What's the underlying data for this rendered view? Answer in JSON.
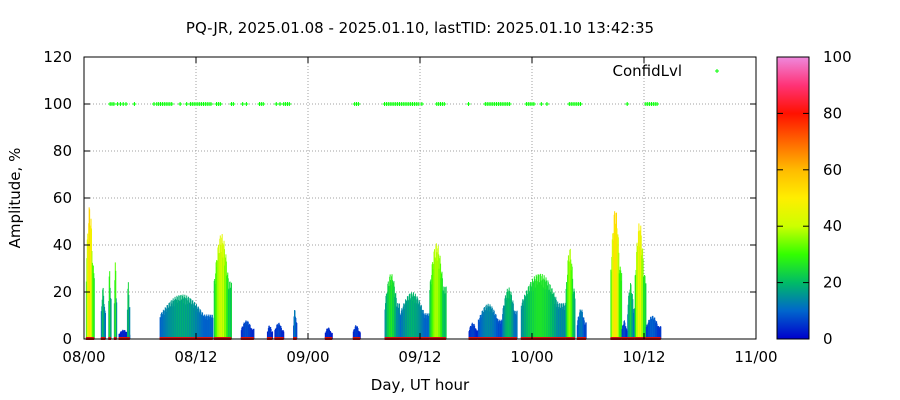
{
  "chart_data": {
    "type": "bar",
    "title": "PQ-JR, 2025.01.08 - 2025.01.10, lastTID: 2025.01.10 13:42:35",
    "xlabel": "Day, UT hour",
    "ylabel": "Amplitude, %",
    "xlim": [
      0,
      72
    ],
    "ylim": [
      0,
      120
    ],
    "x_ticks": [
      {
        "value": 0,
        "label": "08/00"
      },
      {
        "value": 12,
        "label": "08/12"
      },
      {
        "value": 24,
        "label": "09/00"
      },
      {
        "value": 36,
        "label": "09/12"
      },
      {
        "value": 48,
        "label": "10/00"
      },
      {
        "value": 60,
        "label": "10/12"
      },
      {
        "value": 72,
        "label": "11/00"
      }
    ],
    "y_ticks": [
      0,
      20,
      40,
      60,
      80,
      100,
      120
    ],
    "grid": true,
    "colorbar": {
      "min": 0,
      "max": 100,
      "ticks": [
        0,
        20,
        40,
        60,
        80,
        100
      ]
    },
    "series": [
      {
        "name": "ConfidLvl",
        "type": "scatter",
        "color": "#00ff00",
        "y": 100,
        "x": [
          2.8,
          3.0,
          3.2,
          3.6,
          3.9,
          4.2,
          4.5,
          5.4,
          7.5,
          7.8,
          8.0,
          8.2,
          8.4,
          8.6,
          8.8,
          9.0,
          9.2,
          9.4,
          10.3,
          11.0,
          11.4,
          11.6,
          11.8,
          12.0,
          12.2,
          12.4,
          12.6,
          12.8,
          13.0,
          13.2,
          13.4,
          13.6,
          14.2,
          14.4,
          14.6,
          15.8,
          16.0,
          17.0,
          17.4,
          18.8,
          19.0,
          19.2,
          20.6,
          21.0,
          21.4,
          21.6,
          21.8,
          22.0,
          29.0,
          29.2,
          29.4,
          32.2,
          32.4,
          32.6,
          32.8,
          33.0,
          33.2,
          33.4,
          33.6,
          33.8,
          34.0,
          34.2,
          34.4,
          34.6,
          34.8,
          35.0,
          35.2,
          35.4,
          35.6,
          35.8,
          36.2,
          37.8,
          38.0,
          38.2,
          38.4,
          38.6,
          41.2,
          43.0,
          43.2,
          43.4,
          43.6,
          43.8,
          44.0,
          44.2,
          44.4,
          44.6,
          44.8,
          45.0,
          45.2,
          45.4,
          45.6,
          47.4,
          47.6,
          47.8,
          48.0,
          48.2,
          49.0,
          49.6,
          52.0,
          52.2,
          52.4,
          52.6,
          52.8,
          53.0,
          53.2,
          58.2,
          60.2,
          60.4,
          60.6,
          60.8,
          61.0,
          61.2,
          61.4
        ]
      },
      {
        "name": "Amplitude",
        "type": "bar",
        "colored_by": "amplitude",
        "bursts": [
          {
            "start": 0.2,
            "end": 1.1,
            "peak": 57
          },
          {
            "start": 1.8,
            "end": 2.3,
            "peak": 22
          },
          {
            "start": 2.6,
            "end": 2.9,
            "peak": 31
          },
          {
            "start": 3.2,
            "end": 3.5,
            "peak": 33
          },
          {
            "start": 3.7,
            "end": 4.9,
            "peak": 4
          },
          {
            "start": 4.6,
            "end": 4.9,
            "peak": 25
          },
          {
            "start": 8.1,
            "end": 13.8,
            "peak": 19
          },
          {
            "start": 13.9,
            "end": 15.8,
            "peak": 45
          },
          {
            "start": 16.8,
            "end": 18.2,
            "peak": 8
          },
          {
            "start": 19.6,
            "end": 20.2,
            "peak": 6
          },
          {
            "start": 20.4,
            "end": 21.4,
            "peak": 7
          },
          {
            "start": 22.4,
            "end": 22.8,
            "peak": 13
          },
          {
            "start": 25.8,
            "end": 26.6,
            "peak": 5
          },
          {
            "start": 28.8,
            "end": 29.6,
            "peak": 6
          },
          {
            "start": 32.2,
            "end": 33.8,
            "peak": 28
          },
          {
            "start": 33.8,
            "end": 37.0,
            "peak": 20
          },
          {
            "start": 37.0,
            "end": 38.8,
            "peak": 41
          },
          {
            "start": 41.2,
            "end": 42.2,
            "peak": 7
          },
          {
            "start": 42.2,
            "end": 44.8,
            "peak": 15
          },
          {
            "start": 44.8,
            "end": 46.4,
            "peak": 22
          },
          {
            "start": 46.8,
            "end": 51.6,
            "peak": 28
          },
          {
            "start": 51.6,
            "end": 52.6,
            "peak": 39
          },
          {
            "start": 52.8,
            "end": 53.8,
            "peak": 13
          },
          {
            "start": 56.4,
            "end": 57.6,
            "peak": 56
          },
          {
            "start": 57.6,
            "end": 58.2,
            "peak": 8
          },
          {
            "start": 58.2,
            "end": 59.0,
            "peak": 24
          },
          {
            "start": 59.0,
            "end": 60.2,
            "peak": 50
          },
          {
            "start": 60.2,
            "end": 61.8,
            "peak": 10
          }
        ]
      }
    ],
    "legend": {
      "position": "top-right",
      "entries": [
        "ConfidLvl"
      ]
    }
  }
}
